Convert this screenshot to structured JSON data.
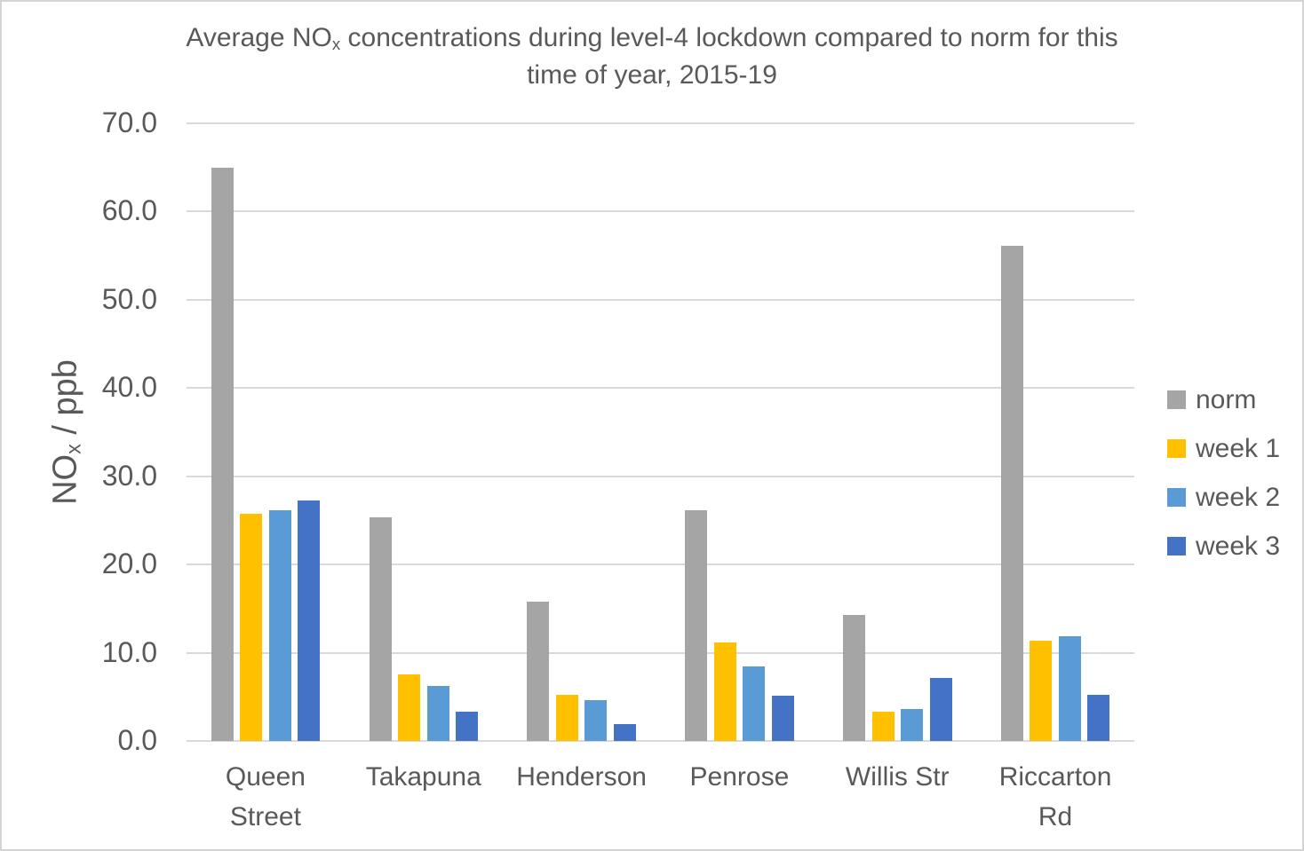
{
  "title": {
    "line1_prefix": "Average NO",
    "line1_sub": "x",
    "line1_suffix": " concentrations during level-4 lockdown compared to norm for this",
    "line2": "time of year, 2015-19"
  },
  "y_axis": {
    "label_prefix": "NO",
    "label_sub": "x",
    "label_suffix": " / ppb",
    "ticks": [
      "70.0",
      "60.0",
      "50.0",
      "40.0",
      "30.0",
      "20.0",
      "10.0",
      "0.0"
    ]
  },
  "colors": {
    "text": "#595959",
    "gridline": "#D9D9D9",
    "border": "#D4D4D4",
    "norm": "#A5A5A5",
    "week1": "#FFC000",
    "week2": "#5B9BD5",
    "week3": "#4472C4"
  },
  "chart_data": {
    "type": "bar",
    "title": "Average NOx concentrations during level-4 lockdown compared to norm for this time of year, 2015-19",
    "ylabel": "NOx / ppb",
    "xlabel": "",
    "ylim": [
      0,
      70
    ],
    "ytick_step": 10,
    "grid": true,
    "legend_position": "right",
    "categories": [
      "Queen Street",
      "Takapuna",
      "Henderson",
      "Penrose",
      "Willis Str",
      "Riccarton Rd"
    ],
    "series": [
      {
        "name": "norm",
        "color": "#A5A5A5",
        "values": [
          65.0,
          25.3,
          15.8,
          26.1,
          14.3,
          56.1
        ]
      },
      {
        "name": "week 1",
        "color": "#FFC000",
        "values": [
          25.7,
          7.5,
          5.2,
          11.2,
          3.3,
          11.4
        ]
      },
      {
        "name": "week 2",
        "color": "#5B9BD5",
        "values": [
          26.1,
          6.2,
          4.6,
          8.4,
          3.6,
          11.9
        ]
      },
      {
        "name": "week 3",
        "color": "#4472C4",
        "values": [
          27.3,
          3.3,
          1.9,
          5.1,
          7.1,
          5.2
        ]
      }
    ]
  }
}
